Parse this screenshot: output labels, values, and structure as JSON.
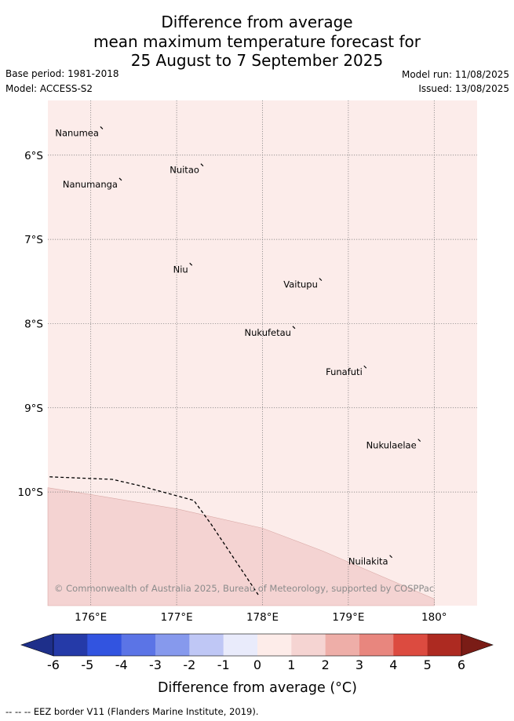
{
  "title": {
    "line1": "Difference from average",
    "line2": "mean maximum temperature forecast for",
    "line3": "25 August to 7 September 2025"
  },
  "meta": {
    "base_period": "Base period: 1981-2018",
    "model": "Model: ACCESS-S2",
    "model_run": "Model run: 11/08/2025",
    "issued": "Issued: 13/08/2025"
  },
  "map": {
    "extent": {
      "lon": [
        175.5,
        180.5
      ],
      "lat": [
        -5.35,
        -11.35
      ]
    },
    "lon_ticks": [
      {
        "value": 176,
        "label": "176°E"
      },
      {
        "value": 177,
        "label": "177°E"
      },
      {
        "value": 178,
        "label": "178°E"
      },
      {
        "value": 179,
        "label": "179°E"
      },
      {
        "value": 180,
        "label": "180°"
      }
    ],
    "lat_ticks": [
      {
        "value": -6,
        "label": "6°S"
      },
      {
        "value": -7,
        "label": "7°S"
      },
      {
        "value": -8,
        "label": "8°S"
      },
      {
        "value": -9,
        "label": "9°S"
      },
      {
        "value": -10,
        "label": "10°S"
      }
    ],
    "background_anomaly_class": "0 to 1",
    "background_color": "#fcecea",
    "southern_region_anomaly_class": "1 to 2",
    "southern_region_color": "#f4d3d2",
    "southern_region_boundary": [
      {
        "lon": 175.5,
        "lat": -9.95
      },
      {
        "lon": 176.0,
        "lat": -10.03
      },
      {
        "lon": 177.0,
        "lat": -10.2
      },
      {
        "lon": 178.0,
        "lat": -10.43
      },
      {
        "lon": 178.7,
        "lat": -10.7
      },
      {
        "lon": 180.0,
        "lat": -11.27
      }
    ],
    "eez_border": [
      {
        "lon": 175.52,
        "lat": -9.82
      },
      {
        "lon": 176.25,
        "lat": -9.85
      },
      {
        "lon": 176.55,
        "lat": -9.92
      },
      {
        "lon": 177.2,
        "lat": -10.1
      },
      {
        "lon": 177.4,
        "lat": -10.38
      },
      {
        "lon": 177.95,
        "lat": -11.22
      }
    ],
    "places": [
      {
        "name": "Nanumea",
        "lon": 176.13,
        "lat": -5.68
      },
      {
        "name": "Nuitao",
        "lon": 177.3,
        "lat": -6.12
      },
      {
        "name": "Nanumanga",
        "lon": 176.35,
        "lat": -6.29
      },
      {
        "name": "Niu",
        "lon": 177.17,
        "lat": -7.3
      },
      {
        "name": "Vaitupu",
        "lon": 178.68,
        "lat": -7.48
      },
      {
        "name": "Nukufetau",
        "lon": 178.37,
        "lat": -8.05
      },
      {
        "name": "Funafuti",
        "lon": 179.2,
        "lat": -8.52
      },
      {
        "name": "Nukulaelae",
        "lon": 179.83,
        "lat": -9.39
      },
      {
        "name": "Nuilakita",
        "lon": 179.5,
        "lat": -10.77
      }
    ],
    "copyright": "© Commonwealth of Australia 2025, Bureau of Meteorology, supported by COSPPac"
  },
  "colorbar": {
    "ticks": [
      "-6",
      "-5",
      "-4",
      "-3",
      "-2",
      "-1",
      "0",
      "1",
      "2",
      "3",
      "4",
      "5",
      "6"
    ],
    "colors": [
      "#253aa8",
      "#3254e0",
      "#5b74e6",
      "#8699ed",
      "#bfc7f5",
      "#e9ebfb",
      "#fdece9",
      "#f5d4d2",
      "#eeaea8",
      "#e8867e",
      "#dc4b40",
      "#ad2a21"
    ],
    "under_color": "#1e2f8a",
    "over_color": "#7a1c16",
    "label": "Difference from average (°C)"
  },
  "footer": {
    "eez_legend": "--  --  -- EEZ border V11 (Flanders Marine Institute, 2019)."
  }
}
